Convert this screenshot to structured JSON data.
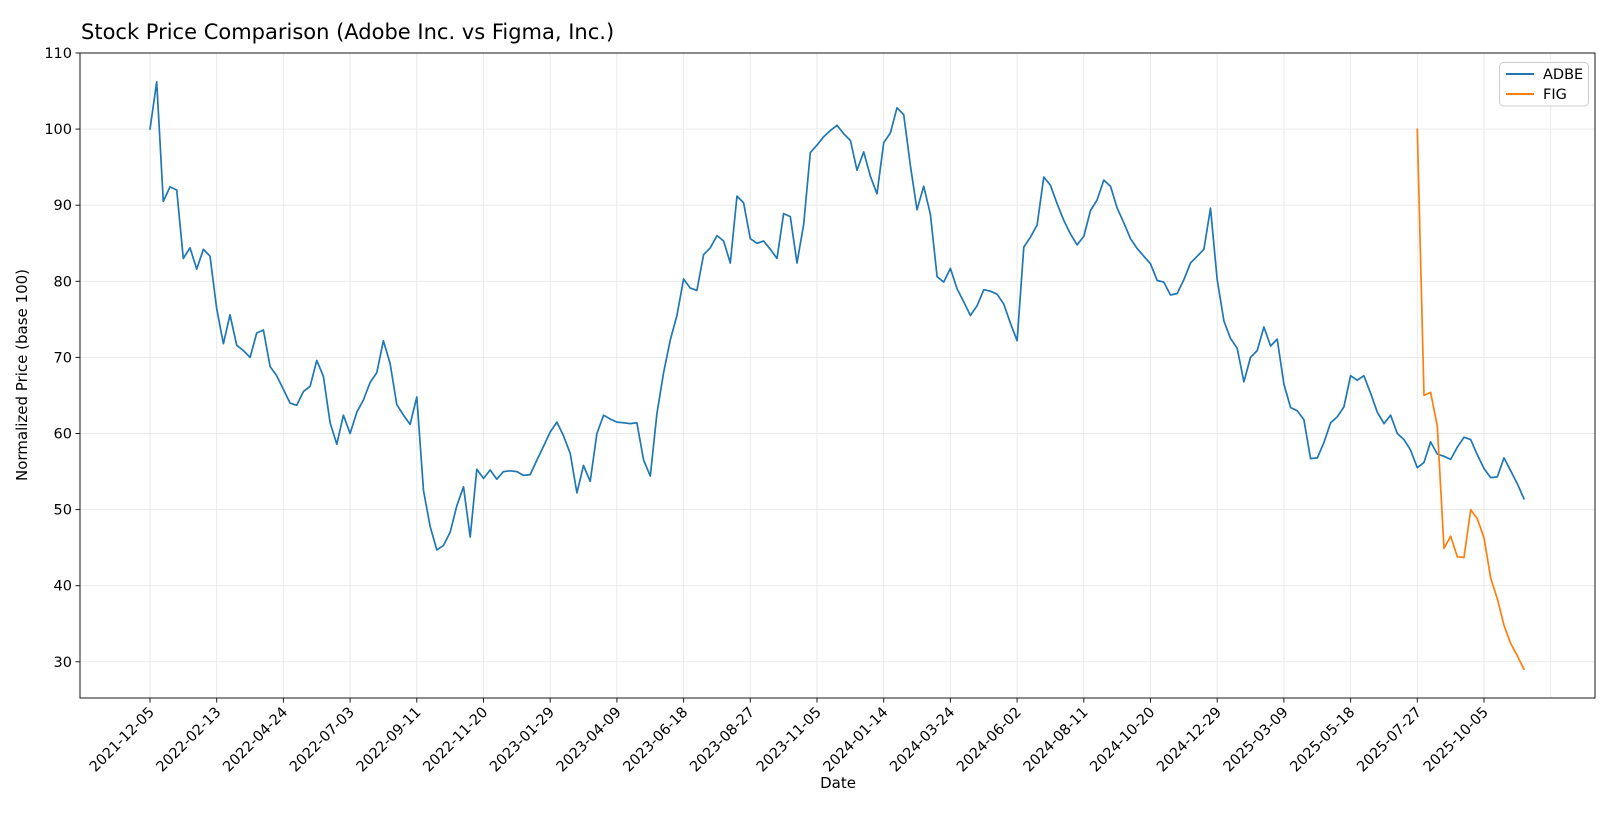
{
  "title": "Stock Price Comparison (Adobe Inc. vs Figma, Inc.)",
  "xlabel": "Date",
  "ylabel": "Normalized Price (base 100)",
  "legend": {
    "position": "upper right",
    "items": [
      {
        "label": "ADBE",
        "color": "#1f77b4"
      },
      {
        "label": "FIG",
        "color": "#ff7f0e"
      }
    ]
  },
  "colors": {
    "adbe_line": "#1f77b4",
    "fig_line": "#ff7f0e",
    "grid": "#e8e8e8",
    "spine": "#1a1a1a",
    "background": "#ffffff",
    "legend_border": "#cccccc"
  },
  "chart_data": {
    "type": "line",
    "title": "Stock Price Comparison (Adobe Inc. vs Figma, Inc.)",
    "xlabel": "Date",
    "ylabel": "Normalized Price (base 100)",
    "x_interval": "weekly",
    "x_start_date": "2021-12-05",
    "x_tick_labels": [
      "2021-12-05",
      "2022-02-13",
      "2022-04-24",
      "2022-07-03",
      "2022-09-11",
      "2022-11-20",
      "2023-01-29",
      "2023-04-09",
      "2023-06-18",
      "2023-08-27",
      "2023-11-05",
      "2024-01-14",
      "2024-03-24",
      "2024-06-02",
      "2024-08-11",
      "2024-10-20",
      "2024-12-29",
      "2025-03-09",
      "2025-05-18",
      "2025-07-27",
      "2025-10-05"
    ],
    "x_tick_week_indices": [
      0,
      10,
      20,
      30,
      40,
      50,
      60,
      70,
      80,
      90,
      100,
      110,
      120,
      130,
      140,
      150,
      160,
      170,
      180,
      190,
      200
    ],
    "y_ticks": [
      110,
      100,
      90,
      80,
      70,
      60,
      50,
      40,
      30
    ],
    "ylim": [
      25.2,
      110
    ],
    "grid": true,
    "legend_position": "upper right",
    "series": [
      {
        "name": "ADBE",
        "color": "#1f77b4",
        "start_week": 0,
        "values": [
          100.0,
          106.2,
          90.5,
          92.4,
          92.0,
          83.0,
          84.4,
          81.6,
          84.2,
          83.3,
          76.4,
          71.8,
          75.6,
          71.6,
          70.9,
          70.0,
          73.2,
          73.6,
          68.8,
          67.6,
          65.8,
          64.0,
          63.7,
          65.5,
          66.2,
          69.6,
          67.5,
          61.4,
          58.6,
          62.4,
          60.0,
          62.8,
          64.4,
          66.7,
          68.0,
          72.2,
          69.2,
          63.8,
          62.4,
          61.2,
          64.8,
          52.5,
          47.8,
          44.7,
          45.3,
          47.0,
          50.5,
          53.0,
          46.4,
          55.3,
          54.1,
          55.2,
          54.0,
          55.0,
          55.1,
          55.0,
          54.5,
          54.6,
          56.5,
          58.3,
          60.2,
          61.5,
          59.7,
          57.4,
          52.2,
          55.8,
          53.7,
          60.0,
          62.4,
          61.9,
          61.5,
          61.4,
          61.3,
          61.4,
          56.5,
          54.4,
          62.6,
          68.0,
          72.3,
          75.5,
          80.3,
          79.1,
          78.8,
          83.5,
          84.4,
          86.0,
          85.3,
          82.4,
          91.2,
          90.3,
          85.6,
          85.0,
          85.3,
          84.2,
          83.0,
          88.9,
          88.5,
          82.4,
          87.5,
          96.9,
          97.9,
          99.0,
          99.8,
          100.5,
          99.4,
          98.5,
          94.6,
          97.0,
          93.8,
          91.5,
          98.2,
          99.5,
          102.8,
          101.9,
          95.2,
          89.4,
          92.5,
          88.8,
          80.6,
          79.9,
          81.7,
          79.0,
          77.3,
          75.5,
          76.8,
          78.9,
          78.7,
          78.3,
          77.0,
          74.5,
          72.2,
          84.5,
          85.8,
          87.4,
          93.7,
          92.6,
          90.2,
          88.0,
          86.2,
          84.8,
          85.9,
          89.3,
          90.7,
          93.3,
          92.5,
          89.6,
          87.7,
          85.6,
          84.3,
          83.3,
          82.3,
          80.1,
          79.9,
          78.2,
          78.4,
          80.2,
          82.4,
          83.3,
          84.2,
          89.6,
          80.2,
          74.8,
          72.5,
          71.2,
          66.8,
          70.0,
          70.9,
          74.0,
          71.5,
          72.4,
          66.5,
          63.4,
          63.0,
          61.8,
          56.7,
          56.8,
          58.8,
          61.4,
          62.2,
          63.5,
          67.6,
          67.0,
          67.6,
          65.3,
          62.8,
          61.3,
          62.4,
          60.0,
          59.2,
          57.8,
          55.5,
          56.2,
          58.9,
          57.3,
          57.0,
          56.6,
          58.2,
          59.5,
          59.2,
          57.2,
          55.4,
          54.2,
          54.3,
          56.8,
          55.1,
          53.4,
          51.4
        ]
      },
      {
        "name": "FIG",
        "color": "#ff7f0e",
        "start_week": 190,
        "values": [
          100.0,
          65.0,
          65.4,
          61.0,
          44.9,
          46.5,
          43.8,
          43.7,
          50.0,
          48.8,
          46.3,
          41.0,
          38.3,
          34.8,
          32.4,
          30.8,
          29.0
        ]
      }
    ]
  }
}
